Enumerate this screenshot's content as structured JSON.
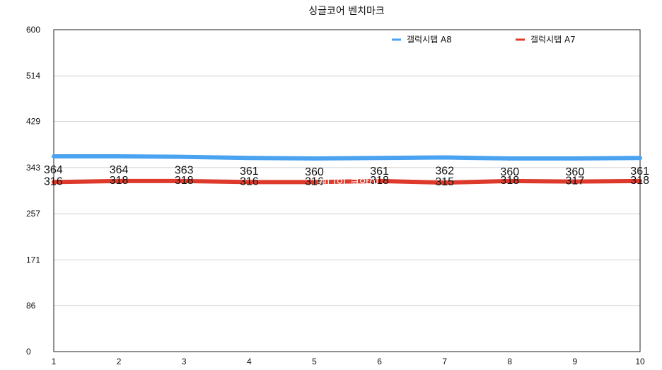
{
  "chart_data": {
    "type": "line",
    "title": "싱글코어 벤치마크",
    "xlabel": "",
    "ylabel": "",
    "categories": [
      "1",
      "2",
      "3",
      "4",
      "5",
      "6",
      "7",
      "8",
      "9",
      "10"
    ],
    "ylim": [
      0,
      600
    ],
    "yticks": [
      "0",
      "86",
      "171",
      "257",
      "343",
      "429",
      "514",
      "600"
    ],
    "grid": true,
    "legend_position": "top-right",
    "series": [
      {
        "name": "갤럭시탭 A8",
        "color": "#4aa3f0",
        "values": [
          364,
          364,
          363,
          361,
          360,
          361,
          362,
          360,
          360,
          361
        ]
      },
      {
        "name": "갤럭시탭 A7",
        "color": "#dd3a2c",
        "values": [
          316,
          318,
          318,
          316,
          316,
          318,
          315,
          318,
          317,
          318
        ]
      }
    ]
  },
  "watermark": "캐디인 코앙이"
}
